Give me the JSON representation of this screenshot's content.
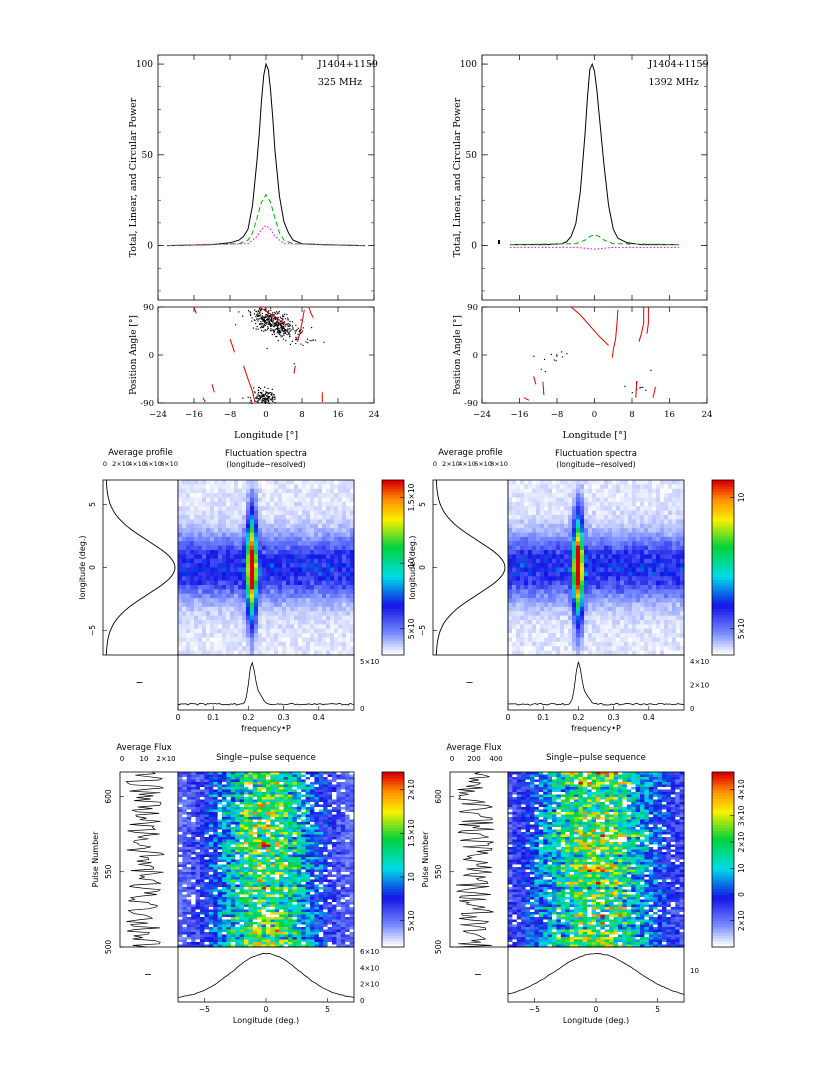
{
  "chart_data": [
    {
      "id": "prof325",
      "type": "line",
      "pulsar": "J1404+1159",
      "freq": "325 MHz",
      "ylabel": "Total, Linear, and Circular Power",
      "ylim": [
        -30,
        105
      ],
      "xlim": [
        -24,
        24
      ],
      "yticks": [
        "0",
        "50",
        "100"
      ],
      "series": [
        {
          "key": "total",
          "style": "solid",
          "color": "#000000",
          "x": [
            -22,
            -12,
            -8,
            -6,
            -5,
            -4,
            -3,
            -2,
            -1.5,
            -1,
            -0.5,
            0,
            0.5,
            1,
            1.5,
            2,
            3,
            4,
            5,
            6,
            8,
            12,
            22
          ],
          "y": [
            0,
            0.5,
            1.5,
            3,
            5,
            9,
            22,
            47,
            62,
            80,
            94,
            100,
            97,
            86,
            70,
            52,
            27,
            13,
            7,
            3,
            1,
            0.5,
            0
          ]
        },
        {
          "key": "linear",
          "style": "dashed",
          "color": "#00b000",
          "x": [
            -22,
            -6,
            -4,
            -3,
            -2,
            -1,
            0,
            1,
            2,
            3,
            4,
            6,
            22
          ],
          "y": [
            0,
            1,
            3,
            7,
            15,
            24,
            28,
            24,
            15,
            7,
            3,
            1,
            0
          ]
        },
        {
          "key": "circular",
          "style": "dotted",
          "color": "#ff00ff",
          "x": [
            -22,
            -4,
            -2,
            -1,
            0,
            1,
            2,
            4,
            22
          ],
          "y": [
            0,
            1,
            5,
            9,
            11,
            9,
            5,
            1,
            0
          ]
        }
      ]
    },
    {
      "id": "prof1392",
      "type": "line",
      "pulsar": "J1404+1159",
      "freq": "1392 MHz",
      "ylabel": "Total, Linear, and Circular Power",
      "ylim": [
        -30,
        105
      ],
      "xlim": [
        -24,
        24
      ],
      "yticks": [
        "0",
        "50",
        "100"
      ],
      "series": [
        {
          "key": "total",
          "style": "solid",
          "color": "#000000",
          "x": [
            -18,
            -10,
            -7,
            -6,
            -5,
            -4,
            -3,
            -2,
            -1.5,
            -1,
            -0.5,
            0,
            0.5,
            1,
            2,
            3,
            4,
            5,
            7,
            10,
            18
          ],
          "y": [
            0.5,
            0.5,
            1,
            2,
            5,
            12,
            30,
            62,
            82,
            97,
            100,
            96,
            86,
            72,
            45,
            22,
            9,
            4,
            1.5,
            0.5,
            0.5
          ]
        },
        {
          "key": "linear",
          "style": "dashed",
          "color": "#00b000",
          "x": [
            -18,
            -4,
            -2,
            -1,
            0,
            1,
            2,
            4,
            18
          ],
          "y": [
            0.5,
            1,
            3,
            5,
            6,
            5,
            3,
            1,
            0.5
          ]
        },
        {
          "key": "circular",
          "style": "dotted",
          "color": "#ff00ff",
          "x": [
            -18,
            -4,
            -2,
            0,
            2,
            4,
            18
          ],
          "y": [
            -1,
            -1,
            -1.5,
            -2,
            -1.5,
            -1,
            -1
          ]
        }
      ]
    },
    {
      "id": "pa325",
      "type": "scatter",
      "ylabel": "Position Angle [°]",
      "xlabel": "Longitude [°]",
      "ylim": [
        -90,
        90
      ],
      "xlim": [
        -24,
        24
      ],
      "yticks": [
        "-90",
        "0",
        "90"
      ],
      "xticks": [
        "−24",
        "−16",
        "−8",
        "0",
        "8",
        "16",
        "24"
      ],
      "segments_deg": [
        [
          [
            -1.5,
            90
          ],
          [
            0,
            82
          ],
          [
            2,
            72
          ],
          [
            3.5,
            62
          ],
          [
            4.5,
            56
          ]
        ],
        [
          [
            -8,
            30
          ],
          [
            -7.5,
            18
          ],
          [
            -7,
            5
          ]
        ],
        [
          [
            -5,
            -20
          ],
          [
            -4,
            -45
          ],
          [
            -3,
            -68
          ],
          [
            -2.5,
            -88
          ]
        ],
        [
          [
            8.5,
            85
          ],
          [
            8,
            60
          ],
          [
            7.5,
            40
          ],
          [
            7,
            25
          ]
        ],
        [
          [
            9.5,
            90
          ],
          [
            10,
            78
          ],
          [
            10.5,
            70
          ]
        ],
        [
          [
            -16,
            90
          ],
          [
            -15.5,
            78
          ]
        ],
        [
          [
            -12,
            -55
          ],
          [
            -11.5,
            -70
          ]
        ],
        [
          [
            6.5,
            -20
          ],
          [
            6.2,
            -35
          ]
        ],
        [
          [
            12.5,
            -70
          ],
          [
            12.5,
            -88
          ]
        ],
        [
          [
            -14,
            -80
          ],
          [
            -13.5,
            -88
          ]
        ]
      ],
      "clouds": [
        {
          "cx": 1.5,
          "cy": 62,
          "sx": 2.2,
          "sy": 18,
          "n": 420,
          "tilt": -1.3
        },
        {
          "cx": -0.5,
          "cy": -80,
          "sx": 1.5,
          "sy": 9,
          "n": 160,
          "tilt": 0
        }
      ]
    },
    {
      "id": "pa1392",
      "type": "scatter",
      "ylabel": "Position Angle [°]",
      "xlabel": "Longitude [°]",
      "ylim": [
        -90,
        90
      ],
      "xlim": [
        -24,
        24
      ],
      "yticks": [
        "-90",
        "0",
        "90"
      ],
      "xticks": [
        "−24",
        "−16",
        "−8",
        "0",
        "8",
        "16",
        "24"
      ],
      "segments_deg": [
        [
          [
            -5,
            90
          ],
          [
            -3,
            75
          ],
          [
            -1,
            55
          ],
          [
            1,
            35
          ],
          [
            3,
            18
          ]
        ],
        [
          [
            5,
            85
          ],
          [
            4.8,
            60
          ],
          [
            4.5,
            30
          ],
          [
            4,
            10
          ],
          [
            3.8,
            -5
          ]
        ],
        [
          [
            10.5,
            90
          ],
          [
            10.5,
            60
          ],
          [
            10,
            40
          ],
          [
            9.5,
            25
          ]
        ],
        [
          [
            11.5,
            90
          ],
          [
            11.5,
            60
          ],
          [
            11.2,
            40
          ]
        ],
        [
          [
            -11,
            -50
          ],
          [
            -10.8,
            -75
          ]
        ],
        [
          [
            -13,
            -40
          ],
          [
            -12.5,
            -55
          ]
        ],
        [
          [
            9,
            -50
          ],
          [
            8.8,
            -80
          ]
        ],
        [
          [
            13,
            -60
          ],
          [
            12.5,
            -80
          ]
        ],
        [
          [
            -15,
            -80
          ],
          [
            -14,
            -85
          ]
        ]
      ],
      "clouds": [
        {
          "cx": -10,
          "cy": -5,
          "sx": 2,
          "sy": 10,
          "n": 12,
          "tilt": 0
        },
        {
          "cx": 10,
          "cy": -55,
          "sx": 2,
          "sy": 10,
          "n": 10,
          "tilt": 0
        }
      ]
    },
    {
      "id": "lrfs325",
      "type": "heatmap",
      "title": "Fluctuation spectra",
      "subtitle": "(longitude−resolved)",
      "side_title": "Average profile",
      "side_ticks": [
        "0",
        "2×10",
        "4×10",
        "6×10",
        "8×10"
      ],
      "ylabel": "longitude (deg.)",
      "xlabel": "frequency•P",
      "yticks": [
        "−5",
        "0",
        "5"
      ],
      "xticks": [
        "0",
        "0.1",
        "0.2",
        "0.3",
        "0.4"
      ],
      "colorbar_ticks": [
        "5×10",
        "10",
        "1.5×10"
      ],
      "bottom_ticks": [
        "0",
        "5×10"
      ],
      "peak_freq": 0.21
    },
    {
      "id": "lrfs1392",
      "type": "heatmap",
      "title": "Fluctuation spectra",
      "subtitle": "(longitude−resolved)",
      "side_title": "Average profile",
      "side_ticks": [
        "0",
        "2×10",
        "4×10",
        "6×10",
        "8×10"
      ],
      "ylabel": "longitude (deg.)",
      "xlabel": "frequency•P",
      "yticks": [
        "−5",
        "0",
        "5"
      ],
      "xticks": [
        "0",
        "0.1",
        "0.2",
        "0.3",
        "0.4"
      ],
      "colorbar_ticks": [
        "5×10",
        "10"
      ],
      "bottom_ticks": [
        "0",
        "2×10",
        "4×10"
      ],
      "peak_freq": 0.2
    },
    {
      "id": "pulse325",
      "type": "heatmap",
      "title": "Single−pulse sequence",
      "side_title": "Average Flux",
      "side_ticks": [
        "0",
        "10",
        "2×10"
      ],
      "ylabel": "Pulse Number",
      "xlabel": "Longitude (deg.)",
      "yticks": [
        "500",
        "550",
        "600"
      ],
      "xticks": [
        "−5",
        "0",
        "5"
      ],
      "colorbar_ticks": [
        "5×10",
        "10",
        "1.5×10",
        "2×10"
      ],
      "bottom_ticks": [
        "0",
        "2×10",
        "4×10",
        "6×10"
      ]
    },
    {
      "id": "pulse1392",
      "type": "heatmap",
      "title": "Single−pulse sequence",
      "side_title": "Average Flux",
      "side_ticks": [
        "0",
        "200",
        "400"
      ],
      "ylabel": "Pulse Number",
      "xlabel": "Longitude (deg.)",
      "yticks": [
        "500",
        "550",
        "600"
      ],
      "xticks": [
        "−5",
        "0",
        "5"
      ],
      "colorbar_ticks": [
        "2×10",
        "0",
        "10",
        "2×10",
        "3×10",
        "4×10"
      ],
      "bottom_ticks": [
        "10"
      ]
    }
  ]
}
